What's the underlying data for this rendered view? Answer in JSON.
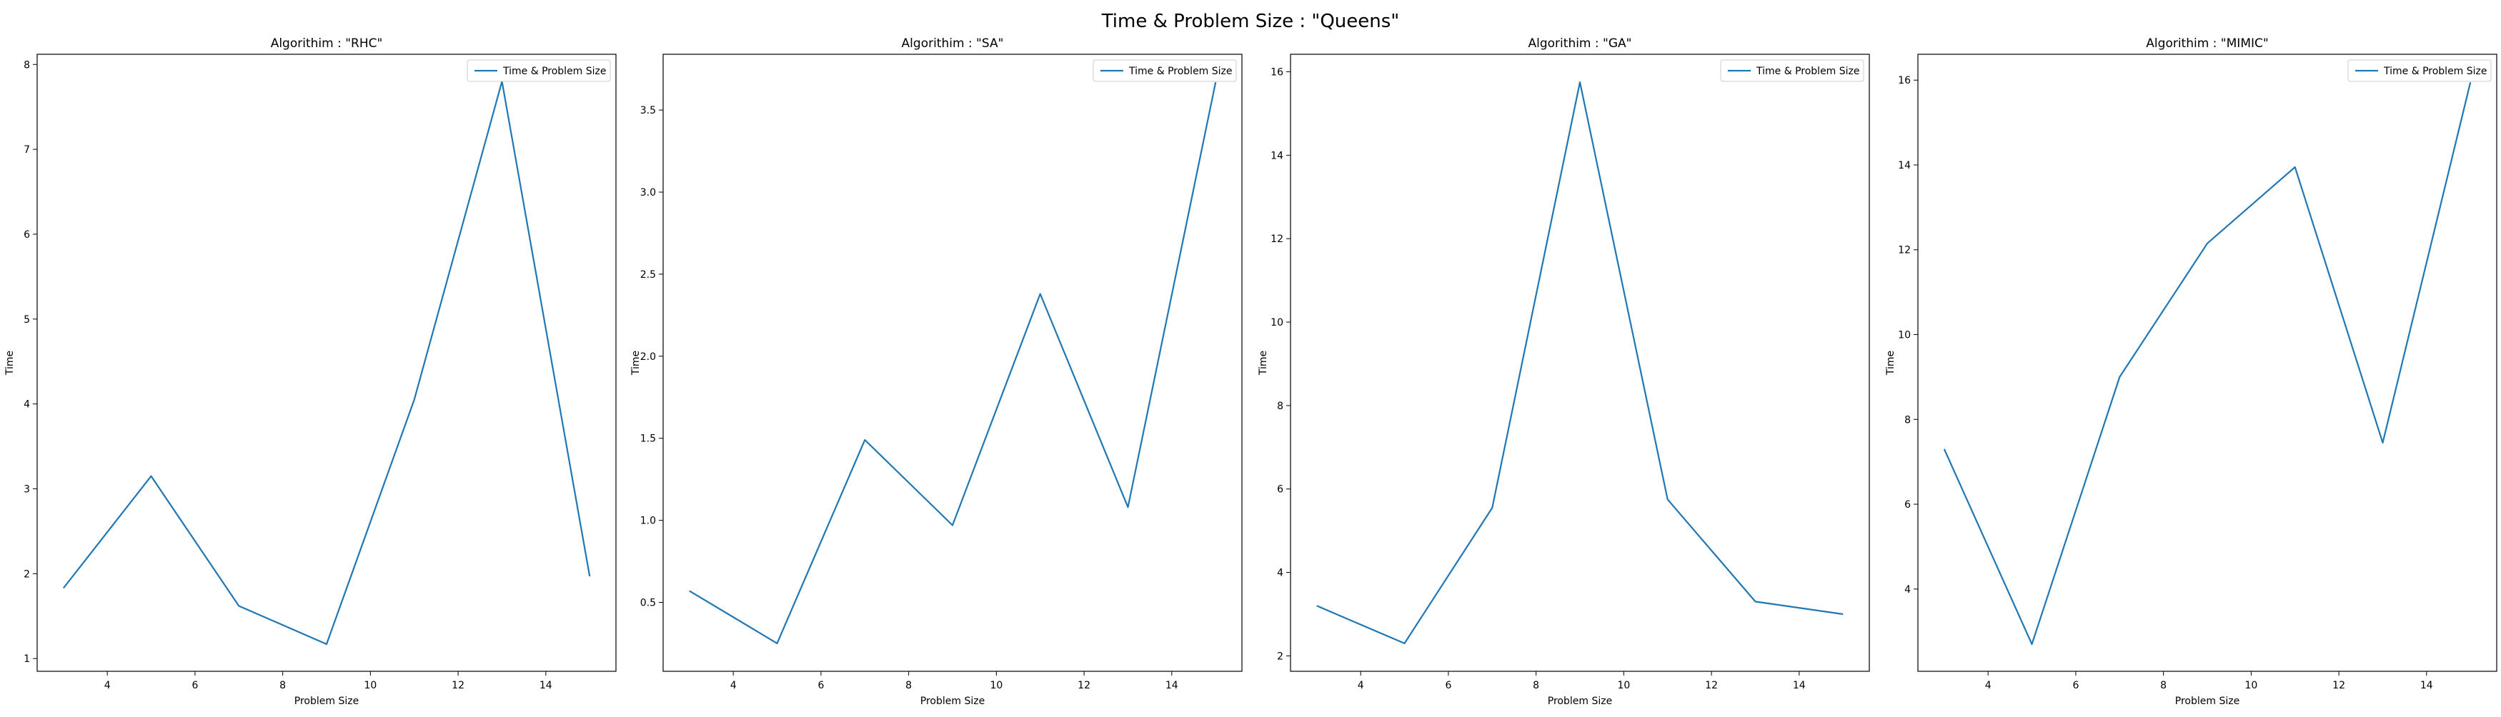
{
  "figure": {
    "title": "Time & Problem Size : \"Queens\""
  },
  "colors": {
    "line": "#1f77b4",
    "axes": "#000000",
    "legend_border": "#cccccc"
  },
  "chart_data": [
    {
      "type": "line",
      "title": "Algorithim : \"RHC\"",
      "xlabel": "Problem Size",
      "ylabel": "Time",
      "x": [
        3,
        5,
        7,
        9,
        11,
        13,
        15
      ],
      "series": [
        {
          "name": "Time & Problem Size",
          "values": [
            1.83,
            3.15,
            1.62,
            1.17,
            4.05,
            7.8,
            1.97
          ]
        }
      ],
      "xlim": [
        2.4,
        15.6
      ],
      "ylim": [
        0.85,
        8.12
      ],
      "xticks": [
        4,
        6,
        8,
        10,
        12,
        14
      ],
      "yticks": [
        1,
        2,
        3,
        4,
        5,
        6,
        7,
        8
      ],
      "legend": "top-right",
      "grid": false
    },
    {
      "type": "line",
      "title": "Algorithim : \"SA\"",
      "xlabel": "Problem Size",
      "ylabel": "Time",
      "x": [
        3,
        5,
        7,
        9,
        11,
        13,
        15
      ],
      "series": [
        {
          "name": "Time & Problem Size",
          "values": [
            0.57,
            0.25,
            1.49,
            0.97,
            2.38,
            1.08,
            3.67
          ]
        }
      ],
      "xlim": [
        2.4,
        15.6
      ],
      "ylim": [
        0.08,
        3.84
      ],
      "xticks": [
        4,
        6,
        8,
        10,
        12,
        14
      ],
      "yticks": [
        0.5,
        1.0,
        1.5,
        2.0,
        2.5,
        3.0,
        3.5
      ],
      "ytick_labels": [
        "0.5",
        "1.0",
        "1.5",
        "2.0",
        "2.5",
        "3.0",
        "3.5"
      ],
      "legend": "top-right",
      "grid": false
    },
    {
      "type": "line",
      "title": "Algorithim : \"GA\"",
      "xlabel": "Problem Size",
      "ylabel": "Time",
      "x": [
        3,
        5,
        7,
        9,
        11,
        13,
        15
      ],
      "series": [
        {
          "name": "Time & Problem Size",
          "values": [
            3.2,
            2.3,
            5.55,
            15.75,
            5.75,
            3.3,
            3.0
          ]
        }
      ],
      "xlim": [
        2.4,
        15.6
      ],
      "ylim": [
        1.63,
        16.42
      ],
      "xticks": [
        4,
        6,
        8,
        10,
        12,
        14
      ],
      "yticks": [
        2,
        4,
        6,
        8,
        10,
        12,
        14,
        16
      ],
      "legend": "top-right",
      "grid": false
    },
    {
      "type": "line",
      "title": "Algorithim : \"MIMIC\"",
      "xlabel": "Problem Size",
      "ylabel": "Time",
      "x": [
        3,
        5,
        7,
        9,
        11,
        13,
        15
      ],
      "series": [
        {
          "name": "Time & Problem Size",
          "values": [
            7.3,
            2.7,
            9.0,
            12.15,
            13.95,
            7.45,
            15.95
          ]
        }
      ],
      "xlim": [
        2.4,
        15.6
      ],
      "ylim": [
        2.06,
        16.61
      ],
      "xticks": [
        4,
        6,
        8,
        10,
        12,
        14
      ],
      "yticks": [
        4,
        6,
        8,
        10,
        12,
        14,
        16
      ],
      "legend": "top-right",
      "grid": false
    }
  ]
}
